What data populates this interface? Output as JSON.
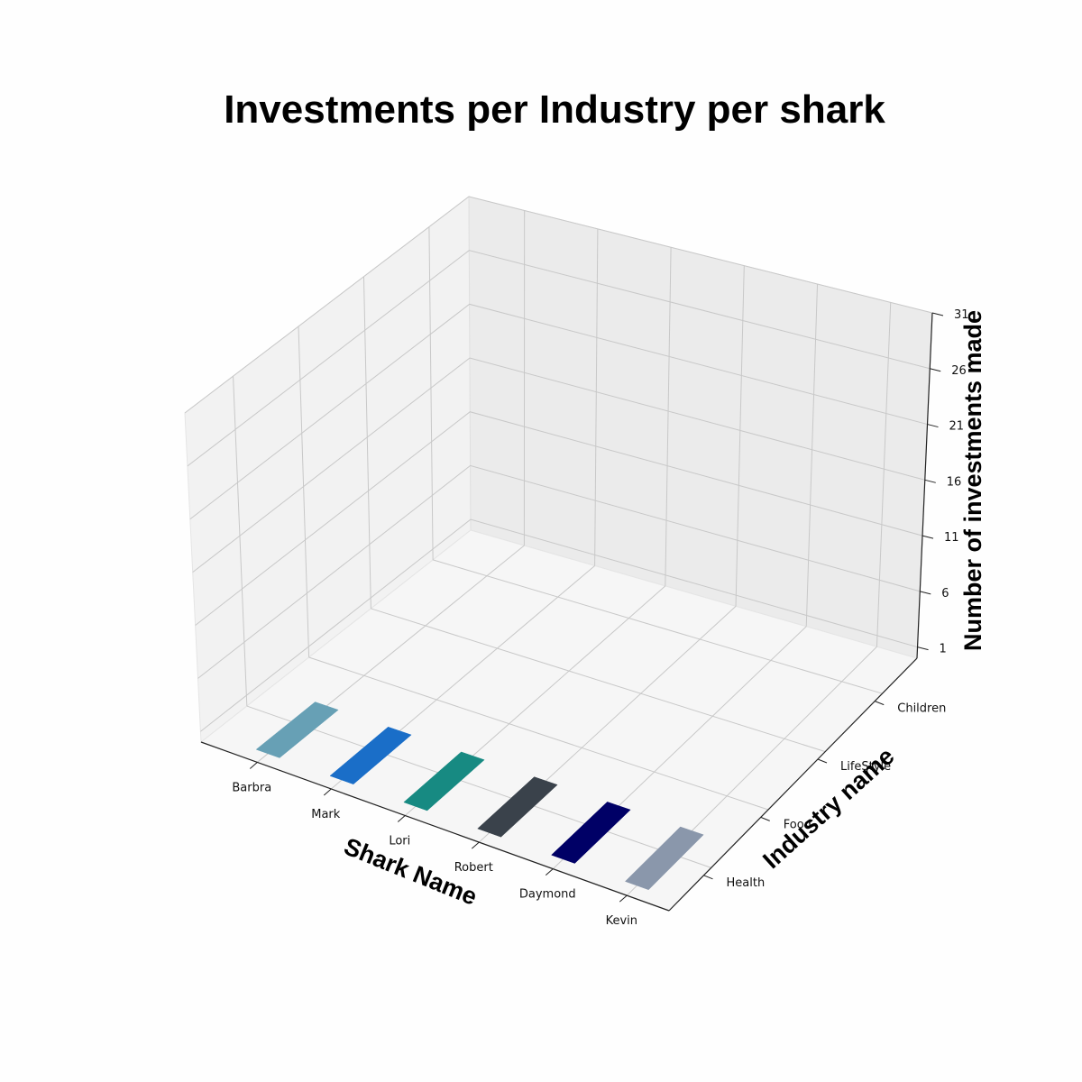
{
  "chart_data": {
    "type": "bar3d",
    "title": "Investments per Industry per shark",
    "xlabel": "Shark Name",
    "ylabel": "Industry name",
    "zlabel": "Number of investments made",
    "x_categories": [
      "Barbra",
      "Mark",
      "Lori",
      "Robert",
      "Daymond",
      "Kevin"
    ],
    "y_categories": [
      "Health",
      "Food",
      "LifeStyle",
      "Children"
    ],
    "z_ticks": [
      "1",
      "6",
      "11",
      "16",
      "21",
      "26",
      "31"
    ],
    "zlim": [
      0,
      31
    ],
    "grid": true,
    "bars": [
      {
        "shark": "Barbra",
        "industry": "Health",
        "value": 0,
        "color": "#67a0b5"
      },
      {
        "shark": "Mark",
        "industry": "Health",
        "value": 0,
        "color": "#1a6ec8"
      },
      {
        "shark": "Lori",
        "industry": "Health",
        "value": 0,
        "color": "#178a82"
      },
      {
        "shark": "Robert",
        "industry": "Health",
        "value": 0,
        "color": "#3a424b"
      },
      {
        "shark": "Daymond",
        "industry": "Health",
        "value": 0,
        "color": "#000066"
      },
      {
        "shark": "Kevin",
        "industry": "Health",
        "value": 0,
        "color": "#8a97ab"
      }
    ]
  }
}
